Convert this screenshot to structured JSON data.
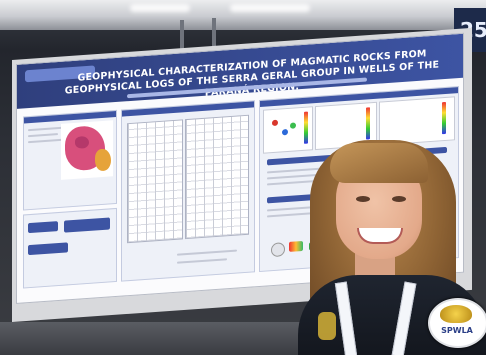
{
  "scene": {
    "booth_number_fragment": "25"
  },
  "poster": {
    "title": "GEOPHYSICAL CHARACTERIZATION OF MAGMATIC ROCKS FROM GEOPHYSICAL LOGS OF THE SERRA GERAL GROUP IN WELLS OF THE PARANÁ REGION."
  },
  "badge": {
    "text": "SPWLA"
  },
  "colors": {
    "poster_blue": "#3d54a3",
    "shirt": "#1a1f28",
    "hair": "#9a6c3a"
  }
}
